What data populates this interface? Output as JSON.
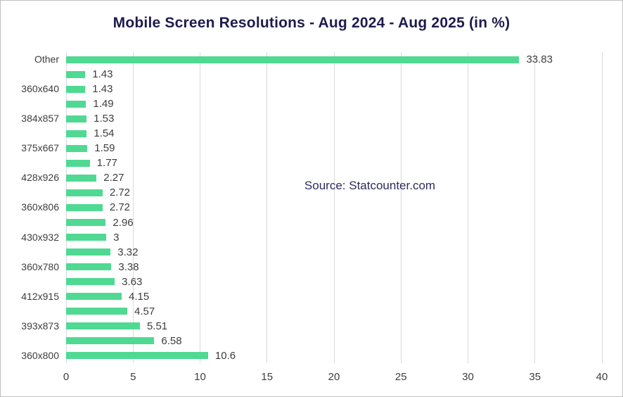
{
  "title": "Mobile Screen Resolutions - Aug 2024 - Aug 2025 (in %)",
  "annotation": "Source: Statcounter.com",
  "colors": {
    "bar": "#50d992",
    "title_text": "#1f1b4d",
    "annotation_text": "#2e2b5f",
    "gridline": "#d9d9d9",
    "axis_text": "#3d3d3d",
    "border": "#c0c0c0",
    "background": "#ffffff"
  },
  "chart_data": {
    "type": "bar",
    "orientation": "horizontal",
    "title": "Mobile Screen Resolutions - Aug 2024 - Aug 2025 (in %)",
    "annotation": "Source: Statcounter.com",
    "categories": [
      "Other",
      "",
      "360x640",
      "",
      "384x857",
      "",
      "375x667",
      "",
      "428x926",
      "",
      "360x806",
      "",
      "430x932",
      "",
      "360x780",
      "",
      "412x915",
      "",
      "393x873",
      "",
      "360x800"
    ],
    "values": [
      33.83,
      1.43,
      1.43,
      1.49,
      1.53,
      1.54,
      1.59,
      1.77,
      2.27,
      2.72,
      2.72,
      2.96,
      3,
      3.32,
      3.38,
      3.63,
      4.15,
      4.57,
      5.51,
      6.58,
      10.6
    ],
    "value_labels": [
      "33.83",
      "1.43",
      "1.43",
      "1.49",
      "1.53",
      "1.54",
      "1.59",
      "1.77",
      "2.27",
      "2.72",
      "2.72",
      "2.96",
      "3",
      "3.32",
      "3.38",
      "3.63",
      "4.15",
      "4.57",
      "5.51",
      "6.58",
      "10.6"
    ],
    "xlabel": "",
    "ylabel": "",
    "xlim": [
      0,
      40
    ],
    "xticks": [
      0,
      5,
      10,
      15,
      20,
      25,
      30,
      35,
      40
    ],
    "grid": "vertical",
    "legend": "none"
  }
}
